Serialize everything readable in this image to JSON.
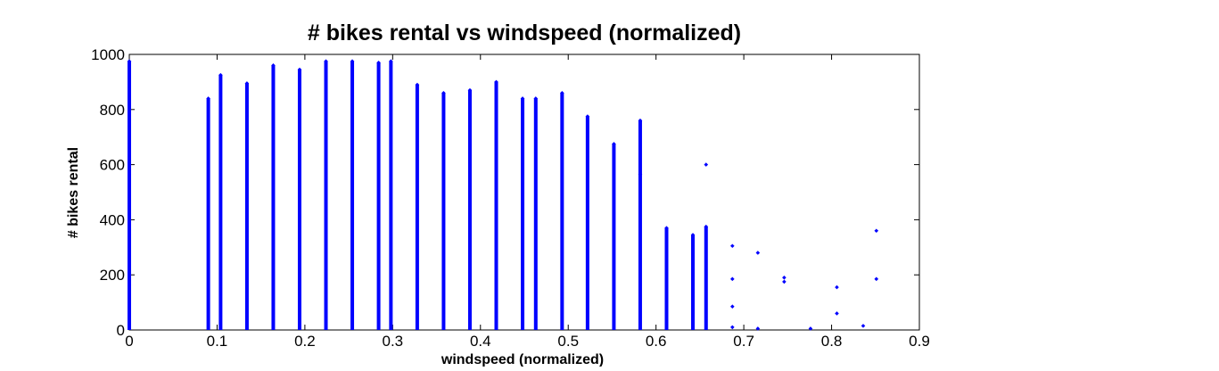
{
  "chart_data": {
    "type": "scatter",
    "title": "# bikes rental vs windspeed (normalized)",
    "xlabel": "windspeed (normalized)",
    "ylabel": "# bikes rental",
    "xlim": [
      0,
      0.9
    ],
    "ylim": [
      0,
      1000
    ],
    "xticks": [
      "0",
      "0.1",
      "0.2",
      "0.3",
      "0.4",
      "0.5",
      "0.6",
      "0.7",
      "0.8",
      "0.9"
    ],
    "yticks": [
      "0",
      "200",
      "400",
      "600",
      "800",
      "1000"
    ],
    "grid": false,
    "legend": "none",
    "marker_color": "#0000ff",
    "marker": "point",
    "columns": [
      {
        "x": 0.0,
        "y_min": 0,
        "y_max": 975
      },
      {
        "x": 0.09,
        "y_min": 0,
        "y_max": 840
      },
      {
        "x": 0.104,
        "y_min": 0,
        "y_max": 925
      },
      {
        "x": 0.134,
        "y_min": 0,
        "y_max": 895
      },
      {
        "x": 0.164,
        "y_min": 0,
        "y_max": 960
      },
      {
        "x": 0.194,
        "y_min": 0,
        "y_max": 945
      },
      {
        "x": 0.224,
        "y_min": 0,
        "y_max": 975
      },
      {
        "x": 0.254,
        "y_min": 0,
        "y_max": 975
      },
      {
        "x": 0.284,
        "y_min": 0,
        "y_max": 970
      },
      {
        "x": 0.298,
        "y_min": 0,
        "y_max": 975
      },
      {
        "x": 0.328,
        "y_min": 0,
        "y_max": 890
      },
      {
        "x": 0.358,
        "y_min": 0,
        "y_max": 860
      },
      {
        "x": 0.388,
        "y_min": 0,
        "y_max": 870
      },
      {
        "x": 0.418,
        "y_min": 0,
        "y_max": 900
      },
      {
        "x": 0.448,
        "y_min": 0,
        "y_max": 840
      },
      {
        "x": 0.463,
        "y_min": 0,
        "y_max": 840
      },
      {
        "x": 0.493,
        "y_min": 0,
        "y_max": 860
      },
      {
        "x": 0.522,
        "y_min": 0,
        "y_max": 775
      },
      {
        "x": 0.552,
        "y_min": 0,
        "y_max": 675
      },
      {
        "x": 0.582,
        "y_min": 0,
        "y_max": 760
      },
      {
        "x": 0.612,
        "y_min": 0,
        "y_max": 370
      },
      {
        "x": 0.642,
        "y_min": 0,
        "y_max": 345
      },
      {
        "x": 0.657,
        "y_min": 0,
        "y_max": 375
      }
    ],
    "points": [
      {
        "x": 0.582,
        "y": 565
      },
      {
        "x": 0.657,
        "y": 600
      },
      {
        "x": 0.687,
        "y": 305
      },
      {
        "x": 0.687,
        "y": 185
      },
      {
        "x": 0.687,
        "y": 85
      },
      {
        "x": 0.687,
        "y": 10
      },
      {
        "x": 0.716,
        "y": 280
      },
      {
        "x": 0.716,
        "y": 5
      },
      {
        "x": 0.746,
        "y": 190
      },
      {
        "x": 0.746,
        "y": 175
      },
      {
        "x": 0.776,
        "y": 5
      },
      {
        "x": 0.806,
        "y": 155
      },
      {
        "x": 0.806,
        "y": 60
      },
      {
        "x": 0.836,
        "y": 15
      },
      {
        "x": 0.851,
        "y": 360
      },
      {
        "x": 0.851,
        "y": 185
      }
    ]
  }
}
